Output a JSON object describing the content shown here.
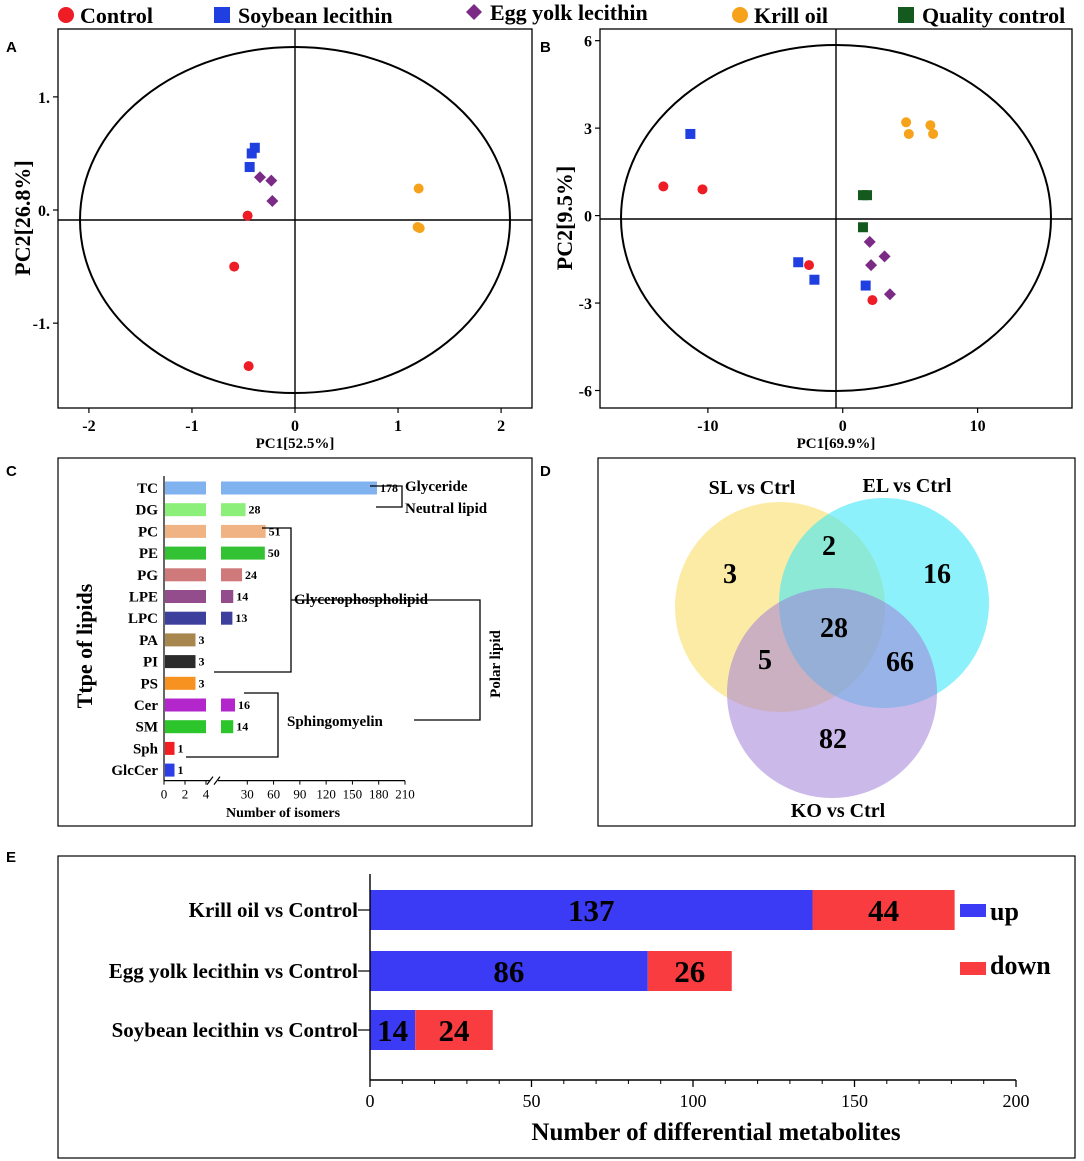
{
  "legend": [
    {
      "label": "Control",
      "shape": "circle",
      "color": "#ee1c24"
    },
    {
      "label": "Soybean lecithin",
      "shape": "square",
      "color": "#1f3fe0"
    },
    {
      "label": "Egg yolk lecithin",
      "shape": "diamond",
      "color": "#7b2a86"
    },
    {
      "label": "Krill oil",
      "shape": "circle",
      "color": "#f7a21b"
    },
    {
      "label": "Quality control",
      "shape": "square",
      "color": "#145a1e"
    }
  ],
  "chart_data": [
    {
      "panel": "A",
      "type": "scatter",
      "xlabel": "PC1[52.5%]",
      "ylabel": "PC2[26.8%]",
      "xlim": [
        -2.3,
        2.3
      ],
      "ylim": [
        -1.75,
        1.6
      ],
      "xticks": [
        "-2",
        "-1",
        "0",
        "1",
        "2"
      ],
      "yticks": [
        "1.",
        "0.",
        "-1."
      ],
      "ytick_values": [
        1,
        0,
        -1
      ],
      "series": [
        {
          "name": "Control",
          "points": [
            [
              -0.46,
              -0.05
            ],
            [
              -0.59,
              -0.5
            ],
            [
              -0.45,
              -1.38
            ]
          ]
        },
        {
          "name": "Soybean lecithin",
          "points": [
            [
              -0.39,
              0.55
            ],
            [
              -0.42,
              0.5
            ],
            [
              -0.44,
              0.38
            ]
          ]
        },
        {
          "name": "Egg yolk lecithin",
          "points": [
            [
              -0.34,
              0.29
            ],
            [
              -0.23,
              0.26
            ],
            [
              -0.22,
              0.08
            ]
          ]
        },
        {
          "name": "Krill oil",
          "points": [
            [
              1.2,
              0.19
            ],
            [
              1.19,
              -0.15
            ],
            [
              1.21,
              -0.16
            ]
          ]
        }
      ]
    },
    {
      "panel": "B",
      "type": "scatter",
      "xlabel": "PC1[69.9%]",
      "ylabel": "PC2[9.5%]",
      "xlim": [
        -18,
        17
      ],
      "ylim": [
        -6.6,
        6.4
      ],
      "xticks": [
        "-10",
        "0",
        "10"
      ],
      "yticks": [
        "6",
        "3",
        "0",
        "-3",
        "-6"
      ],
      "ytick_values": [
        6,
        3,
        0,
        -3,
        -6
      ],
      "series": [
        {
          "name": "Control",
          "points": [
            [
              -13.3,
              1.0
            ],
            [
              -10.4,
              0.9
            ],
            [
              -2.5,
              -1.7
            ],
            [
              2.2,
              -2.9
            ]
          ]
        },
        {
          "name": "Soybean lecithin",
          "points": [
            [
              -11.3,
              2.8
            ],
            [
              -3.3,
              -1.6
            ],
            [
              -2.1,
              -2.2
            ],
            [
              1.7,
              -2.4
            ]
          ]
        },
        {
          "name": "Egg yolk lecithin",
          "points": [
            [
              2.0,
              -0.9
            ],
            [
              2.1,
              -1.7
            ],
            [
              3.1,
              -1.4
            ],
            [
              3.5,
              -2.7
            ]
          ]
        },
        {
          "name": "Krill oil",
          "points": [
            [
              4.7,
              3.2
            ],
            [
              4.9,
              2.8
            ],
            [
              6.5,
              3.1
            ],
            [
              6.7,
              2.8
            ]
          ]
        },
        {
          "name": "Quality control",
          "points": [
            [
              1.5,
              0.7
            ],
            [
              1.8,
              0.7
            ],
            [
              1.5,
              -0.4
            ]
          ]
        }
      ]
    },
    {
      "panel": "C",
      "type": "bar",
      "ylabel": "Ttpe of lipids",
      "xlabel": "Number of isomers",
      "xticks": [
        "0",
        "2",
        "4",
        "30",
        "60",
        "90",
        "120",
        "150",
        "180",
        "210"
      ],
      "categories": [
        "TC",
        "DG",
        "PC",
        "PE",
        "PG",
        "LPE",
        "LPC",
        "PA",
        "PI",
        "PS",
        "Cer",
        "SM",
        "Sph",
        "GlcCer"
      ],
      "values": [
        178,
        28,
        51,
        50,
        24,
        14,
        13,
        3,
        3,
        3,
        16,
        14,
        1,
        1
      ],
      "labels": [
        "178",
        "28",
        "51",
        "50",
        "24",
        "14",
        "13",
        "3",
        "3",
        "3",
        "16",
        "14",
        "1",
        "1"
      ],
      "colors": [
        "#7fb2ee",
        "#8cef7a",
        "#f0b384",
        "#33c234",
        "#d0797a",
        "#944d8c",
        "#3d3f9c",
        "#a8874f",
        "#2b2b2b",
        "#f7911f",
        "#b226cc",
        "#2cc62c",
        "#f21e22",
        "#2e3ee6"
      ],
      "groups": [
        "Glyceride",
        "Neutral lipid",
        "Glycerophospholipid",
        "Polar lipid",
        "Sphingomyelin"
      ]
    },
    {
      "panel": "D",
      "type": "venn",
      "sets": [
        "SL vs Ctrl",
        "EL vs Ctrl",
        "KO vs Ctrl"
      ],
      "regions": {
        "SL_only": "3",
        "EL_only": "16",
        "KO_only": "82",
        "SL_EL": "2",
        "SL_KO": "5",
        "EL_KO": "66",
        "all": "28"
      }
    },
    {
      "panel": "E",
      "type": "bar",
      "orientation": "horizontal",
      "stacked": true,
      "categories": [
        "Krill oil vs Control",
        "Egg yolk lecithin vs Control",
        "Soybean lecithin vs Control"
      ],
      "series": [
        {
          "name": "up",
          "color": "#3b3bf5",
          "values": [
            137,
            86,
            14
          ]
        },
        {
          "name": "down",
          "color": "#f93c40",
          "values": [
            44,
            26,
            24
          ]
        }
      ],
      "xlabel": "Number of differential metabolites",
      "xlim": [
        0,
        200
      ],
      "xticks": [
        "0",
        "50",
        "100",
        "150",
        "200"
      ],
      "legend": [
        "up",
        "down"
      ]
    }
  ]
}
